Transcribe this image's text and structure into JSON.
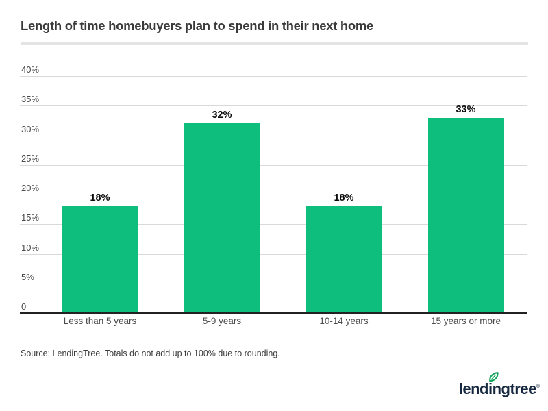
{
  "header": {
    "title": "Length of time homebuyers plan to spend in their next home"
  },
  "chart_data": {
    "type": "bar",
    "title": "Length of time homebuyers plan to spend in their next home",
    "categories": [
      "Less than 5 years",
      "5-9 years",
      "10-14 years",
      "15 years or more"
    ],
    "values": [
      18,
      32,
      18,
      33
    ],
    "value_labels": [
      "18%",
      "32%",
      "18%",
      "33%"
    ],
    "xlabel": "",
    "ylabel": "",
    "y_ticks": [
      0,
      5,
      10,
      15,
      20,
      25,
      30,
      35,
      40
    ],
    "y_tick_labels": [
      "0",
      "5%",
      "10%",
      "15%",
      "20%",
      "25%",
      "30%",
      "35%",
      "40%"
    ],
    "ylim": [
      0,
      40
    ],
    "grid": true,
    "legend": false,
    "bar_color": "#0dbe7d"
  },
  "footer": {
    "source_note": "Source: LendingTree. Totals do not add up to 100% due to rounding.",
    "logo_text": "lendingtree",
    "logo_registered_mark": "®"
  },
  "colors": {
    "bar_green": "#0dbe7d",
    "logo_navy": "#16283f",
    "leaf_green": "#14a45c",
    "gridline_gray": "#d9d9d9",
    "axis_dark": "#222222",
    "title_gray": "#3a3a3a"
  }
}
